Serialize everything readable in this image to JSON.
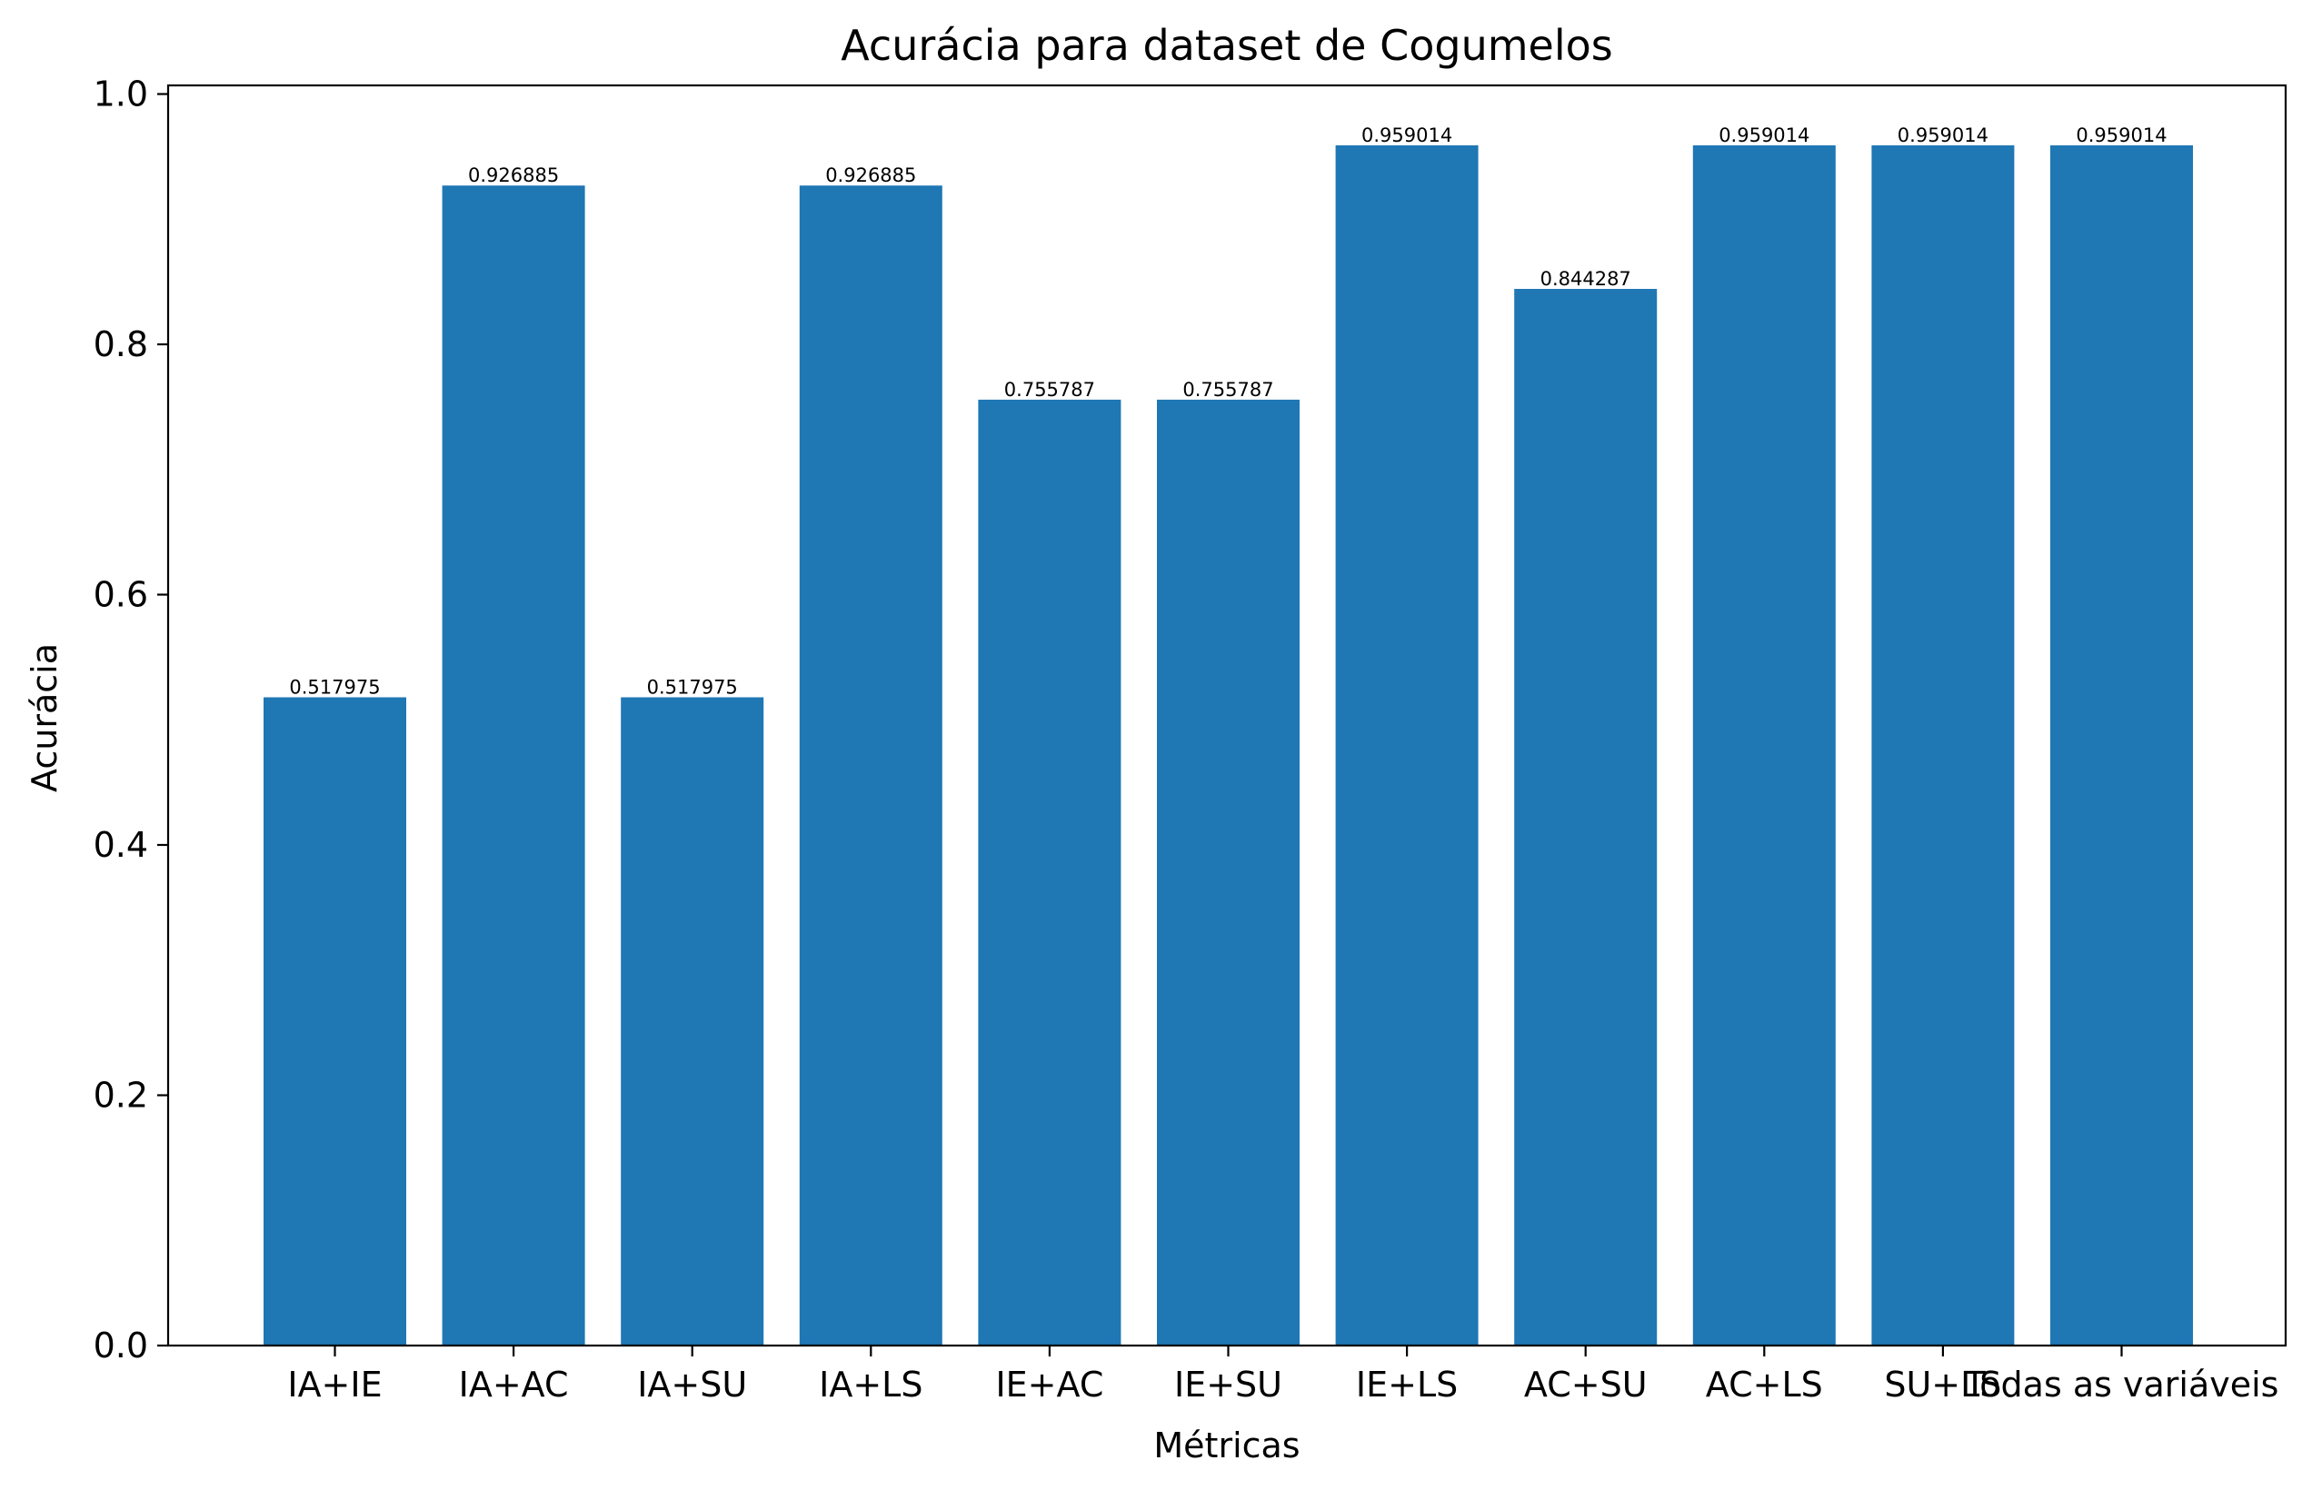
{
  "chart_data": {
    "type": "bar",
    "title": "Acurácia para dataset de Cogumelos",
    "xlabel": "Métricas",
    "ylabel": "Acurácia",
    "categories": [
      "IA+IE",
      "IA+AC",
      "IA+SU",
      "IA+LS",
      "IE+AC",
      "IE+SU",
      "IE+LS",
      "AC+SU",
      "AC+LS",
      "SU+LS",
      "Todas as variáveis"
    ],
    "values": [
      0.517975,
      0.926885,
      0.517975,
      0.926885,
      0.755787,
      0.755787,
      0.959014,
      0.844287,
      0.959014,
      0.959014,
      0.959014
    ],
    "value_labels": [
      "0.517975",
      "0.926885",
      "0.517975",
      "0.926885",
      "0.755787",
      "0.755787",
      "0.959014",
      "0.844287",
      "0.959014",
      "0.959014",
      "0.959014"
    ],
    "yticks": [
      0.0,
      0.2,
      0.4,
      0.6,
      0.8,
      1.0
    ],
    "ytick_labels": [
      "0.0",
      "0.2",
      "0.4",
      "0.6",
      "0.8",
      "1.0"
    ],
    "ylim": [
      0,
      1.0069
    ],
    "bar_color": "#1f77b4",
    "grid": false,
    "legend": "none"
  }
}
